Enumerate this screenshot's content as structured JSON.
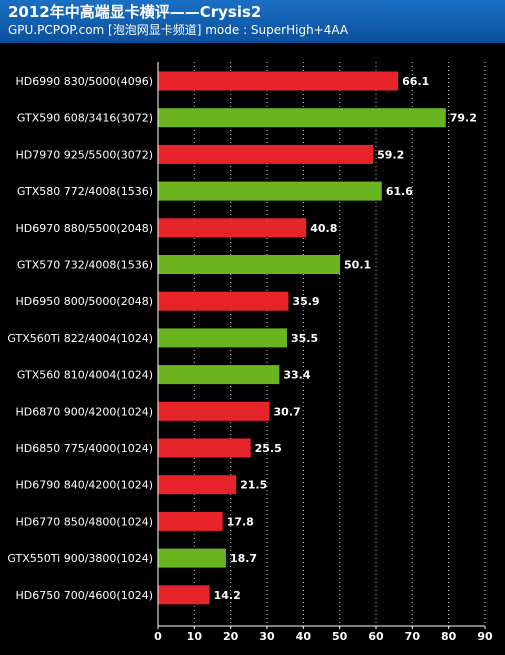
{
  "header": {
    "title": "2012年中高端显卡横评——Crysis2",
    "subtitle": "GPU.PCPOP.com [泡泡网显卡频道] mode : SuperHigh+4AA"
  },
  "colors": {
    "amd": "#e8242b",
    "nvidia": "#6ab51f",
    "header": "#1565b8",
    "background": "#000000",
    "grid": "#ffffff"
  },
  "chart_data": {
    "type": "bar",
    "orientation": "horizontal",
    "title": "2012年中高端显卡横评——Crysis2",
    "subtitle": "GPU.PCPOP.com [泡泡网显卡频道] mode : SuperHigh+4AA",
    "xlabel": "",
    "ylabel": "",
    "xlim": [
      0,
      90
    ],
    "xticks": [
      0,
      10,
      20,
      30,
      40,
      50,
      60,
      70,
      80,
      90
    ],
    "grid": "vertical dotted",
    "legend": "none",
    "categories": [
      "HD6990 830/5000(4096)",
      "GTX590 608/3416(3072)",
      "HD7970 925/5500(3072)",
      "GTX580 772/4008(1536)",
      "HD6970 880/5500(2048)",
      "GTX570 732/4008(1536)",
      "HD6950 800/5000(2048)",
      "GTX560Ti 822/4004(1024)",
      "GTX560 810/4004(1024)",
      "HD6870 900/4200(1024)",
      "HD6850 775/4000(1024)",
      "HD6790 840/4200(1024)",
      "HD6770 850/4800(1024)",
      "GTX550Ti 900/3800(1024)",
      "HD6750 700/4600(1024)"
    ],
    "values": [
      66.1,
      79.2,
      59.2,
      61.6,
      40.8,
      50.1,
      35.9,
      35.5,
      33.4,
      30.7,
      25.5,
      21.5,
      17.8,
      18.7,
      14.2
    ],
    "bar_colors": [
      "amd",
      "nvidia",
      "amd",
      "nvidia",
      "amd",
      "nvidia",
      "amd",
      "nvidia",
      "nvidia",
      "amd",
      "amd",
      "amd",
      "amd",
      "nvidia",
      "amd"
    ]
  }
}
